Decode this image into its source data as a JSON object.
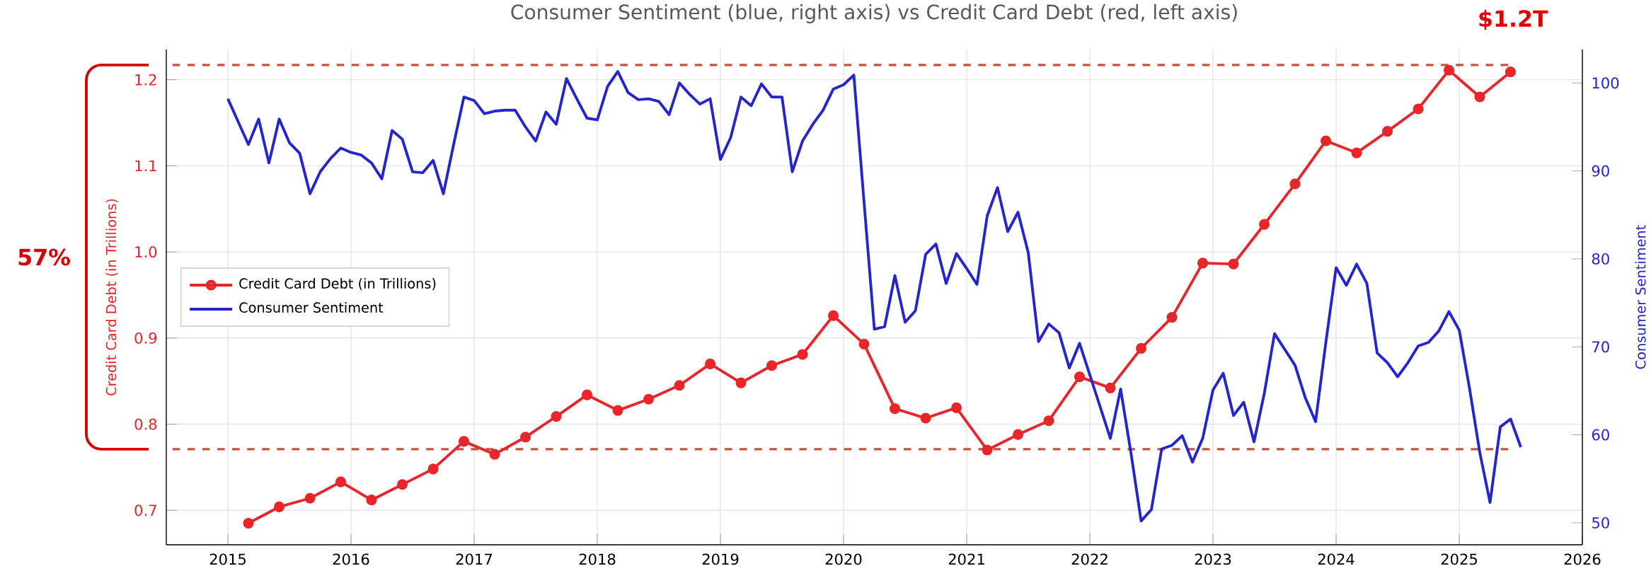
{
  "chart_data": {
    "type": "line",
    "title": "Consumer Sentiment (blue, right axis) vs Credit Card Debt (red, left axis)",
    "ylabel": "Credit Card Debt (in Trillions)",
    "y2label": "Consumer Sentiment",
    "annotations": [
      "57%",
      "$1.2T"
    ],
    "xlim": [
      "2014-07",
      "2026-01"
    ],
    "xticks": [
      "2015",
      "2016",
      "2017",
      "2018",
      "2019",
      "2020",
      "2021",
      "2022",
      "2023",
      "2024",
      "2025",
      "2026"
    ],
    "ylim": [
      0.66,
      1.235
    ],
    "yticks": [
      0.7,
      0.8,
      0.9,
      {
        "value": 1.0,
        "label": "1.0"
      },
      1.1,
      1.2
    ],
    "y2lim": [
      47.5,
      103.8
    ],
    "y2ticks": [
      50,
      60,
      70,
      80,
      90,
      100
    ],
    "grid": true,
    "legend": "left",
    "ref_lines": [
      {
        "axis": "y",
        "value": 1.217,
        "color": "#c8503c",
        "line_style": "dashed"
      },
      {
        "axis": "y",
        "value": 0.771,
        "color": "#c8503c",
        "line_style": "dashed"
      }
    ],
    "series": [
      {
        "name": "Credit Card Debt (in Trillions)",
        "color": "#e8262a",
        "marker": "circle",
        "axis": "y",
        "x": [
          "2015-03",
          "2015-06",
          "2015-09",
          "2015-12",
          "2016-03",
          "2016-06",
          "2016-09",
          "2016-12",
          "2017-03",
          "2017-06",
          "2017-09",
          "2017-12",
          "2018-03",
          "2018-06",
          "2018-09",
          "2018-12",
          "2019-03",
          "2019-06",
          "2019-09",
          "2019-12",
          "2020-03",
          "2020-06",
          "2020-09",
          "2020-12",
          "2021-03",
          "2021-06",
          "2021-09",
          "2021-12",
          "2022-03",
          "2022-06",
          "2022-09",
          "2022-12",
          "2023-03",
          "2023-06",
          "2023-09",
          "2023-12",
          "2024-03",
          "2024-06",
          "2024-09",
          "2024-12",
          "2025-03",
          "2025-06"
        ],
        "values": [
          0.685,
          0.704,
          0.714,
          0.733,
          0.712,
          0.73,
          0.748,
          0.78,
          0.765,
          0.785,
          0.809,
          0.834,
          0.816,
          0.829,
          0.845,
          0.87,
          0.848,
          0.868,
          0.881,
          0.926,
          0.893,
          0.818,
          0.807,
          0.819,
          0.77,
          0.788,
          0.804,
          0.855,
          0.842,
          0.888,
          0.924,
          0.987,
          0.986,
          1.032,
          1.079,
          1.129,
          1.115,
          1.14,
          1.166,
          1.211,
          1.18,
          1.209
        ]
      },
      {
        "name": "Consumer Sentiment",
        "color": "#2424d0",
        "marker": "none",
        "axis": "y2",
        "x": [
          "2015-01",
          "2015-02",
          "2015-03",
          "2015-04",
          "2015-05",
          "2015-06",
          "2015-07",
          "2015-08",
          "2015-09",
          "2015-10",
          "2015-11",
          "2015-12",
          "2016-01",
          "2016-02",
          "2016-03",
          "2016-04",
          "2016-05",
          "2016-06",
          "2016-07",
          "2016-08",
          "2016-09",
          "2016-10",
          "2016-11",
          "2016-12",
          "2017-01",
          "2017-02",
          "2017-03",
          "2017-04",
          "2017-05",
          "2017-06",
          "2017-07",
          "2017-08",
          "2017-09",
          "2017-10",
          "2017-11",
          "2017-12",
          "2018-01",
          "2018-02",
          "2018-03",
          "2018-04",
          "2018-05",
          "2018-06",
          "2018-07",
          "2018-08",
          "2018-09",
          "2018-10",
          "2018-11",
          "2018-12",
          "2019-01",
          "2019-02",
          "2019-03",
          "2019-04",
          "2019-05",
          "2019-06",
          "2019-07",
          "2019-08",
          "2019-09",
          "2019-10",
          "2019-11",
          "2019-12",
          "2020-01",
          "2020-02",
          "2020-03",
          "2020-04",
          "2020-05",
          "2020-06",
          "2020-07",
          "2020-08",
          "2020-09",
          "2020-10",
          "2020-11",
          "2020-12",
          "2021-01",
          "2021-02",
          "2021-03",
          "2021-04",
          "2021-05",
          "2021-06",
          "2021-07",
          "2021-08",
          "2021-09",
          "2021-10",
          "2021-11",
          "2021-12",
          "2022-01",
          "2022-02",
          "2022-03",
          "2022-04",
          "2022-05",
          "2022-06",
          "2022-07",
          "2022-08",
          "2022-09",
          "2022-10",
          "2022-11",
          "2022-12",
          "2023-01",
          "2023-02",
          "2023-03",
          "2023-04",
          "2023-05",
          "2023-06",
          "2023-07",
          "2023-08",
          "2023-09",
          "2023-10",
          "2023-11",
          "2023-12",
          "2024-01",
          "2024-02",
          "2024-03",
          "2024-04",
          "2024-05",
          "2024-06",
          "2024-07",
          "2024-08",
          "2024-09",
          "2024-10",
          "2024-11",
          "2024-12",
          "2025-01",
          "2025-02",
          "2025-03",
          "2025-04",
          "2025-05",
          "2025-06",
          "2025-07"
        ],
        "values": [
          98.2,
          95.6,
          93.0,
          95.9,
          90.9,
          95.9,
          93.2,
          92.0,
          87.4,
          89.9,
          91.4,
          92.6,
          92.1,
          91.8,
          90.9,
          89.1,
          94.6,
          93.6,
          89.9,
          89.8,
          91.2,
          87.4,
          93.0,
          98.4,
          98.0,
          96.5,
          96.8,
          96.9,
          96.9,
          95.0,
          93.4,
          96.7,
          95.3,
          100.5,
          98.2,
          96.0,
          95.8,
          99.6,
          101.3,
          98.9,
          98.1,
          98.2,
          97.9,
          96.4,
          100.0,
          98.7,
          97.6,
          98.2,
          91.3,
          93.8,
          98.4,
          97.4,
          99.9,
          98.4,
          98.4,
          89.9,
          93.4,
          95.3,
          96.9,
          99.3,
          99.8,
          100.9,
          86.4,
          72.0,
          72.3,
          78.1,
          72.8,
          74.1,
          80.5,
          81.7,
          77.2,
          80.6,
          78.9,
          77.1,
          84.9,
          88.1,
          83.1,
          85.3,
          80.7,
          70.6,
          72.6,
          71.6,
          67.6,
          70.4,
          66.8,
          63.2,
          59.6,
          65.2,
          58.0,
          50.2,
          51.5,
          58.4,
          58.8,
          59.9,
          56.9,
          59.6,
          65.1,
          67.0,
          62.2,
          63.7,
          59.2,
          64.7,
          71.5,
          69.7,
          67.9,
          64.2,
          61.5,
          70.5,
          79.0,
          77.0,
          79.4,
          77.2,
          69.3,
          68.2,
          66.6,
          68.2,
          70.1,
          70.5,
          71.8,
          74.0,
          71.9,
          65.3,
          58.0,
          52.3,
          60.9,
          61.8,
          58.6
        ]
      }
    ]
  }
}
